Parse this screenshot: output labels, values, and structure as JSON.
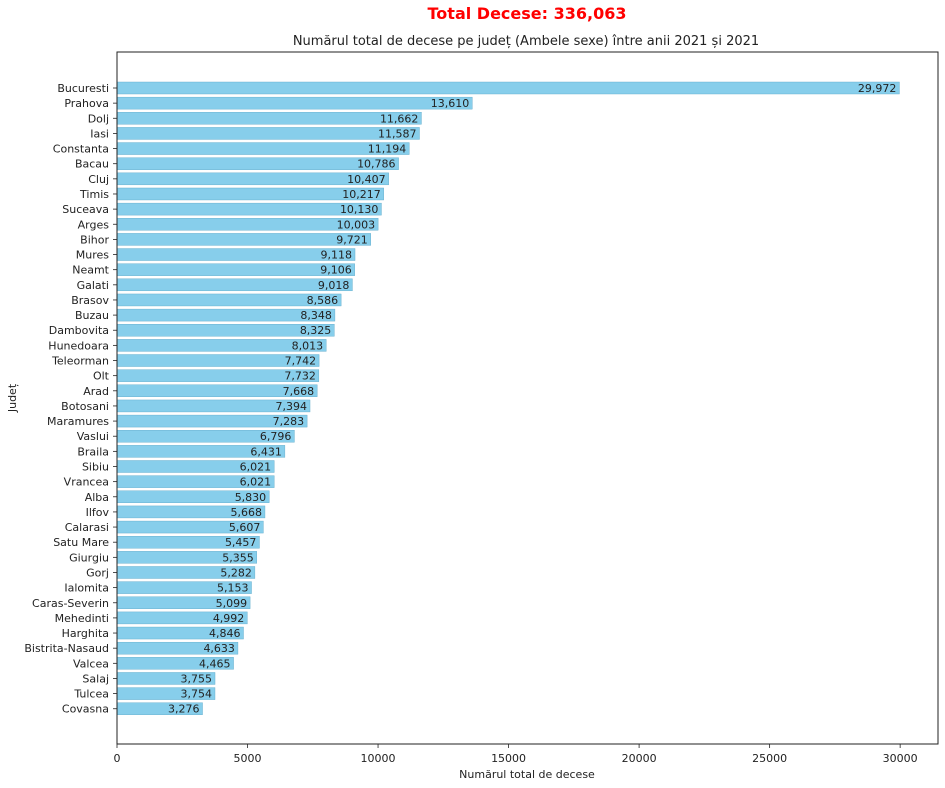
{
  "suptitle": "Total Decese: 336,063",
  "colors": {
    "bar": "#87ceeb",
    "bar_edge": "#5aa7c7",
    "suptitle": "#ff0000",
    "text": "#222222"
  },
  "chart_data": {
    "type": "bar",
    "orientation": "horizontal",
    "title": "Numărul total de decese pe județ (Ambele sexe) între anii 2021 și 2021",
    "xlabel": "Numărul total de decese",
    "ylabel": "Județ",
    "xlim": [
      0,
      31450
    ],
    "xticks": [
      0,
      5000,
      10000,
      15000,
      20000,
      25000,
      30000
    ],
    "grid": false,
    "legend": "none",
    "categories": [
      "Bucuresti",
      "Prahova",
      "Dolj",
      "Iasi",
      "Constanta",
      "Bacau",
      "Cluj",
      "Timis",
      "Suceava",
      "Arges",
      "Bihor",
      "Mures",
      "Neamt",
      "Galati",
      "Brasov",
      "Buzau",
      "Dambovita",
      "Hunedoara",
      "Teleorman",
      "Olt",
      "Arad",
      "Botosani",
      "Maramures",
      "Vaslui",
      "Braila",
      "Sibiu",
      "Vrancea",
      "Alba",
      "Ilfov",
      "Calarasi",
      "Satu Mare",
      "Giurgiu",
      "Gorj",
      "Ialomita",
      "Caras-Severin",
      "Mehedinti",
      "Harghita",
      "Bistrita-Nasaud",
      "Valcea",
      "Salaj",
      "Tulcea",
      "Covasna"
    ],
    "values": [
      29972,
      13610,
      11662,
      11587,
      11194,
      10786,
      10407,
      10217,
      10130,
      10003,
      9721,
      9118,
      9106,
      9018,
      8586,
      8348,
      8325,
      8013,
      7742,
      7732,
      7668,
      7394,
      7283,
      6796,
      6431,
      6021,
      6021,
      5830,
      5668,
      5607,
      5457,
      5355,
      5282,
      5153,
      5099,
      4992,
      4846,
      4633,
      4465,
      3755,
      3754,
      3276
    ],
    "data_labels": [
      "29,972",
      "13,610",
      "11,662",
      "11,587",
      "11,194",
      "10,786",
      "10,407",
      "10,217",
      "10,130",
      "10,003",
      "9,721",
      "9,118",
      "9,106",
      "9,018",
      "8,586",
      "8,348",
      "8,325",
      "8,013",
      "7,742",
      "7,732",
      "7,668",
      "7,394",
      "7,283",
      "6,796",
      "6,431",
      "6,021",
      "6,021",
      "5,830",
      "5,668",
      "5,607",
      "5,457",
      "5,355",
      "5,282",
      "5,153",
      "5,099",
      "4,992",
      "4,846",
      "4,633",
      "4,465",
      "3,755",
      "3,754",
      "3,276"
    ]
  }
}
